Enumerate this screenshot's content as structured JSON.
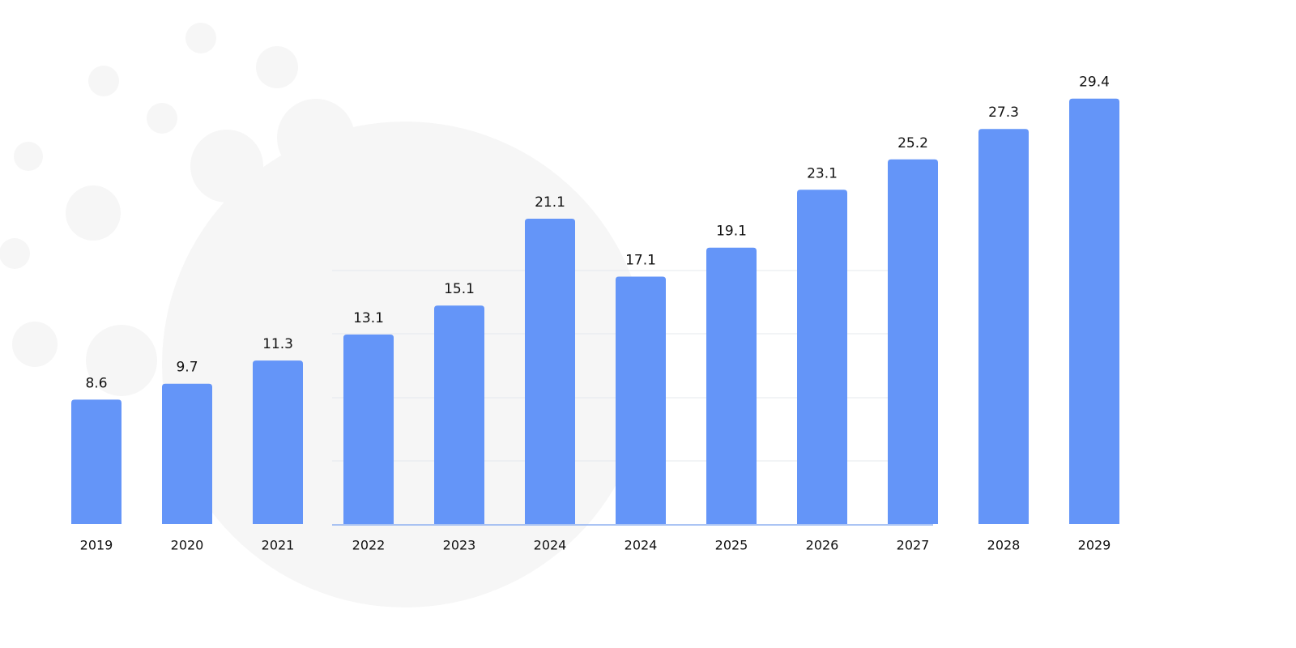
{
  "chart_data": {
    "type": "bar",
    "categories": [
      "2019",
      "2020",
      "2021",
      "2022",
      "2023",
      "2024",
      "2024",
      "2025",
      "2026",
      "2027",
      "2028",
      "2029"
    ],
    "values": [
      8.6,
      9.7,
      11.3,
      13.1,
      15.1,
      21.1,
      17.1,
      19.1,
      23.1,
      25.2,
      27.3,
      29.4
    ],
    "color": "#6495f8",
    "ylim": [
      0,
      30
    ]
  }
}
